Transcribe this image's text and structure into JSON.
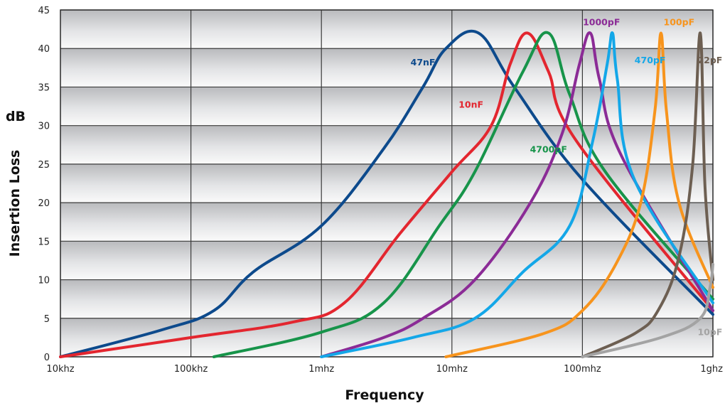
{
  "chart_data": {
    "type": "line",
    "title": "",
    "xlabel": "Frequency",
    "ylabel": "Insertion Loss",
    "yunit": "dB",
    "x_scale": "log",
    "xlim_hz": [
      10000,
      1000000000
    ],
    "ylim": [
      0,
      45
    ],
    "x_ticks": [
      {
        "value": 10000,
        "label": "10khz"
      },
      {
        "value": 100000,
        "label": "100khz"
      },
      {
        "value": 1000000,
        "label": "1mhz"
      },
      {
        "value": 10000000,
        "label": "10mhz"
      },
      {
        "value": 100000000,
        "label": "100mhz"
      },
      {
        "value": 1000000000,
        "label": "1ghz"
      }
    ],
    "y_ticks": [
      0,
      5,
      10,
      15,
      20,
      25,
      30,
      35,
      40,
      45
    ],
    "grid": true,
    "series": [
      {
        "name": "47nF",
        "color": "#0d4a8c",
        "points": [
          [
            10000,
            0
          ],
          [
            60000,
            3.5
          ],
          [
            150000,
            6
          ],
          [
            300000,
            11
          ],
          [
            1000000,
            17
          ],
          [
            3000000,
            27
          ],
          [
            6000000,
            35
          ],
          [
            9000000,
            40
          ],
          [
            16000000,
            42
          ],
          [
            30000000,
            35
          ],
          [
            100000000,
            23
          ],
          [
            1000000000,
            5.5
          ]
        ],
        "label_at": [
          6000000,
          37.8
        ]
      },
      {
        "name": "10nF",
        "color": "#e3262f",
        "points": [
          [
            10000,
            0
          ],
          [
            100000,
            2.5
          ],
          [
            600000,
            4.5
          ],
          [
            1500000,
            7
          ],
          [
            4000000,
            16
          ],
          [
            10000000,
            24
          ],
          [
            20000000,
            30
          ],
          [
            28000000,
            38
          ],
          [
            38000000,
            42
          ],
          [
            55000000,
            37
          ],
          [
            90000000,
            28
          ],
          [
            1000000000,
            6
          ]
        ],
        "label_at": [
          14000000,
          32.3
        ]
      },
      {
        "name": "4700pF",
        "color": "#17944a",
        "points": [
          [
            150000,
            0
          ],
          [
            1000000,
            3.2
          ],
          [
            3000000,
            7
          ],
          [
            8000000,
            17
          ],
          [
            15000000,
            24
          ],
          [
            35000000,
            37
          ],
          [
            55000000,
            42
          ],
          [
            80000000,
            34
          ],
          [
            150000000,
            24
          ],
          [
            1000000000,
            7.5
          ]
        ],
        "label_at": [
          55000000,
          26.5
        ]
      },
      {
        "name": "1000pF",
        "color": "#8b2b96",
        "points": [
          [
            1000000,
            0
          ],
          [
            3000000,
            2.5
          ],
          [
            6000000,
            5
          ],
          [
            15000000,
            10
          ],
          [
            40000000,
            20
          ],
          [
            70000000,
            29
          ],
          [
            95000000,
            38
          ],
          [
            115000000,
            42
          ],
          [
            135000000,
            36
          ],
          [
            200000000,
            26
          ],
          [
            1000000000,
            6
          ]
        ],
        "label_at": [
          140000000,
          43.0
        ]
      },
      {
        "name": "470pF",
        "color": "#14a7e8",
        "points": [
          [
            1000000,
            0
          ],
          [
            5000000,
            2.5
          ],
          [
            15000000,
            5
          ],
          [
            35000000,
            11
          ],
          [
            80000000,
            17
          ],
          [
            120000000,
            28
          ],
          [
            155000000,
            38
          ],
          [
            170000000,
            42
          ],
          [
            185000000,
            36
          ],
          [
            250000000,
            23
          ],
          [
            1000000000,
            7
          ]
        ],
        "label_at": [
          330000000,
          38.1
        ]
      },
      {
        "name": "100pF",
        "color": "#f7941d",
        "points": [
          [
            9000000,
            0
          ],
          [
            50000000,
            3
          ],
          [
            100000000,
            6
          ],
          [
            180000000,
            12
          ],
          [
            280000000,
            20
          ],
          [
            360000000,
            32
          ],
          [
            400000000,
            42
          ],
          [
            440000000,
            32
          ],
          [
            550000000,
            20
          ],
          [
            1000000000,
            9
          ]
        ],
        "label_at": [
          550000000,
          43.0
        ]
      },
      {
        "name": "22pF",
        "color": "#6d5f52",
        "points": [
          [
            100000000,
            0
          ],
          [
            250000000,
            3
          ],
          [
            380000000,
            6
          ],
          [
            550000000,
            13
          ],
          [
            700000000,
            25
          ],
          [
            800000000,
            42
          ],
          [
            870000000,
            22
          ],
          [
            1000000000,
            10
          ]
        ],
        "label_at": [
          950000000,
          38.1
        ]
      },
      {
        "name": "10pF",
        "color": "#a3a3a3",
        "points": [
          [
            100000000,
            0
          ],
          [
            400000000,
            2.5
          ],
          [
            800000000,
            5
          ],
          [
            950000000,
            9
          ],
          [
            1000000000,
            12
          ]
        ],
        "label_at": [
          950000000,
          2.8
        ]
      }
    ]
  }
}
